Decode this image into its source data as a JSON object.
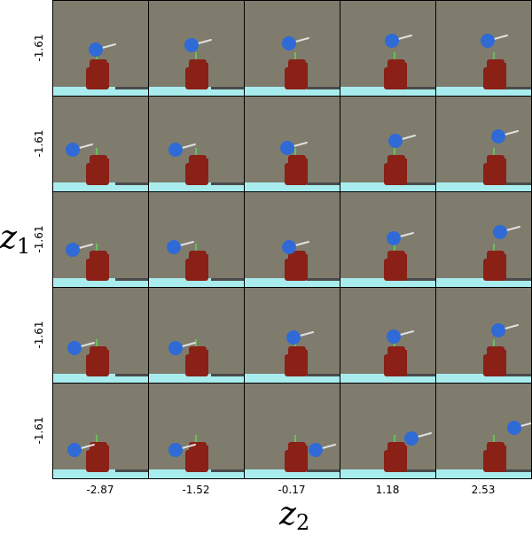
{
  "figure": {
    "x_axis_label": "z",
    "x_axis_subscript": "2",
    "y_axis_label": "z",
    "y_axis_subscript": "1",
    "row_labels": [
      "-1.61",
      "-1.61",
      "-1.61",
      "-1.61",
      "-1.61"
    ],
    "col_labels": [
      "-2.87",
      "-1.52",
      "-0.17",
      "1.18",
      "2.53"
    ]
  },
  "colors": {
    "background": "#7f7c6e",
    "floor": "#4a4a4a",
    "table_edge": "#a8ecee",
    "robot": "#8a2016",
    "ball": "#2f6ad6",
    "rod": "#e0e0e0",
    "stem": "#68c058"
  }
}
